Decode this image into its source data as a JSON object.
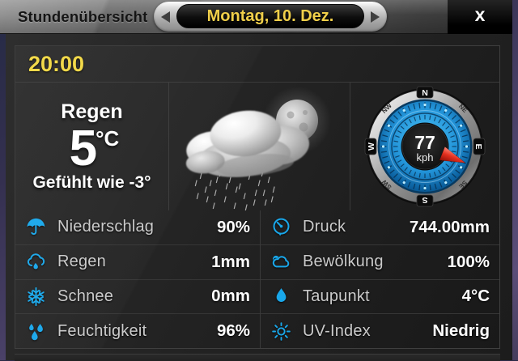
{
  "window": {
    "title": "Stundenübersicht",
    "close_label": "x"
  },
  "date_nav": {
    "date": "Montag, 10. Dez.",
    "prev_icon": "left-arrow-icon",
    "next_icon": "right-arrow-icon"
  },
  "hour": {
    "time": "20:00",
    "condition": "Regen",
    "temperature": "5",
    "temperature_unit": "°C",
    "feels_like": "Gefühlt wie -3°",
    "weather_icon": "rain-cloud-moon-icon"
  },
  "wind": {
    "speed": "77",
    "unit": "kph",
    "direction_deg": 112,
    "compass_points": [
      "N",
      "NE",
      "E",
      "SE",
      "S",
      "SW",
      "W",
      "NW"
    ]
  },
  "details": {
    "left": [
      {
        "icon": "umbrella-icon",
        "label": "Niederschlag",
        "value": "90%"
      },
      {
        "icon": "rain-cloud-icon",
        "label": "Regen",
        "value": "1mm"
      },
      {
        "icon": "snowflake-icon",
        "label": "Schnee",
        "value": "0mm"
      },
      {
        "icon": "humidity-icon",
        "label": "Feuchtigkeit",
        "value": "96%"
      }
    ],
    "right": [
      {
        "icon": "pressure-gauge-icon",
        "label": "Druck",
        "value": "744.00mm"
      },
      {
        "icon": "cloud-icon",
        "label": "Bewölkung",
        "value": "100%"
      },
      {
        "icon": "water-drop-icon",
        "label": "Taupunkt",
        "value": "4°C"
      },
      {
        "icon": "sun-icon",
        "label": "UV-Index",
        "value": "Niedrig"
      }
    ]
  },
  "colors": {
    "accent_blue": "#19a7ea",
    "highlight_yellow": "#f2d843",
    "needle_red": "#e0301f"
  }
}
